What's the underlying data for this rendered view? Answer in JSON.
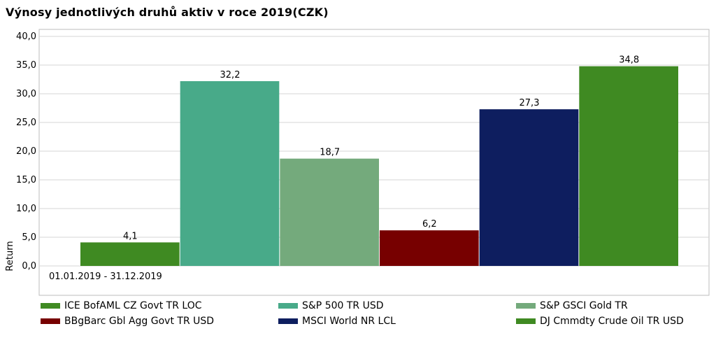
{
  "title": "Výnosy jednotlivých druhů aktiv v roce 2019(CZK)",
  "chart_data": {
    "type": "bar",
    "ylabel": "Return",
    "xlabel": "01.01.2019 - 31.12.2019",
    "ylim": [
      0,
      40
    ],
    "yticks": [
      "0,0",
      "5,0",
      "10,0",
      "15,0",
      "20,0",
      "25,0",
      "30,0",
      "35,0",
      "40,0"
    ],
    "grid": true,
    "legend_position": "bottom",
    "series": [
      {
        "name": "ICE BofAML CZ Govt TR LOC",
        "value": 4.1,
        "label": "4,1",
        "color": "#3f8a22"
      },
      {
        "name": "S&P 500 TR USD",
        "value": 32.2,
        "label": "32,2",
        "color": "#48aa89"
      },
      {
        "name": "S&P GSCI Gold TR",
        "value": 18.7,
        "label": "18,7",
        "color": "#74aa7c"
      },
      {
        "name": "BBgBarc Gbl Agg Govt TR USD",
        "value": 6.2,
        "label": "6,2",
        "color": "#770000"
      },
      {
        "name": "MSCI World NR LCL",
        "value": 27.3,
        "label": "27,3",
        "color": "#0e1e5f"
      },
      {
        "name": "DJ Cmmdty Crude Oil TR USD",
        "value": 34.8,
        "label": "34,8",
        "color": "#3f8a22"
      }
    ]
  }
}
